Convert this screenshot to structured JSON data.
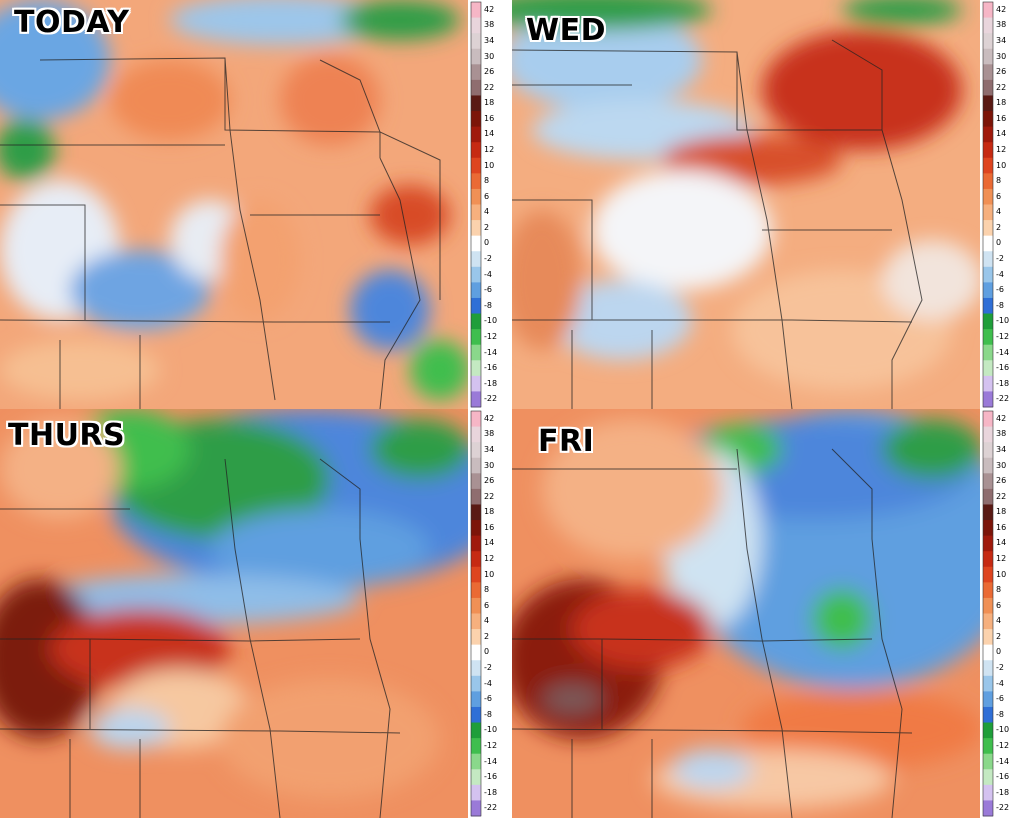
{
  "panels": [
    {
      "id": "today",
      "label": "TODAY"
    },
    {
      "id": "wed",
      "label": "WED"
    },
    {
      "id": "thurs",
      "label": "THURS"
    },
    {
      "id": "fri",
      "label": "FRI"
    }
  ],
  "colorbar": {
    "ticks": [
      "42",
      "38",
      "34",
      "30",
      "26",
      "22",
      "18",
      "16",
      "14",
      "12",
      "10",
      "8",
      "6",
      "4",
      "2",
      "0",
      "-2",
      "-4",
      "-6",
      "-8",
      "-10",
      "-12",
      "-14",
      "-16",
      "-18",
      "-22"
    ],
    "colors": [
      "#f6b6c6",
      "#e9d5dc",
      "#ddd2d4",
      "#c9bcbe",
      "#a99193",
      "#8f6d6f",
      "#5a1a14",
      "#7c1509",
      "#a01a0c",
      "#c62a13",
      "#de4520",
      "#ea6a34",
      "#f09055",
      "#f6b07e",
      "#fbd2ad",
      "#ffffff",
      "#cfe3f2",
      "#99c6ea",
      "#5f9fe0",
      "#2f6fd6",
      "#1f9e3a",
      "#3fbe4e",
      "#8ad88b",
      "#c4e9c2",
      "#d4c2f0",
      "#9a7ad8"
    ]
  }
}
